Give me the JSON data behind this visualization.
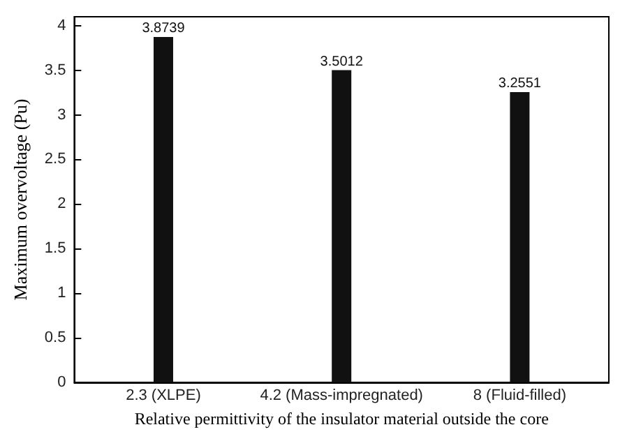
{
  "chart_data": {
    "type": "bar",
    "xlabel": "Relative permittivity of the insulator material outside the core",
    "ylabel": "Maximum overvoltage (Pu)",
    "categories": [
      "2.3 (XLPE)",
      "4.2 (Mass-impregnated)",
      "8 (Fluid-filled)"
    ],
    "values": [
      3.8739,
      3.5012,
      3.2551
    ],
    "color": "#111111",
    "data_labels": true,
    "ylim": [
      0,
      4.1
    ],
    "yticks": [
      0,
      0.5,
      1,
      1.5,
      2,
      2.5,
      3,
      3.5,
      4
    ],
    "grid": false
  }
}
